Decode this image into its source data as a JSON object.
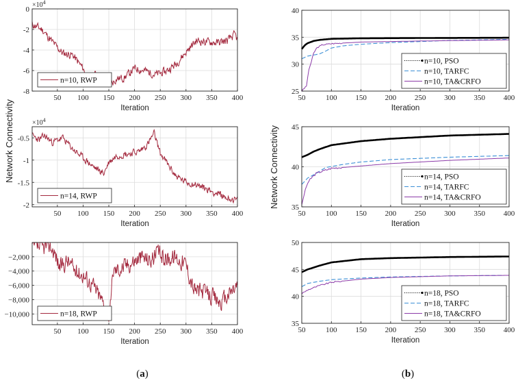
{
  "shared": {
    "ylabel": "Network Connectivity",
    "xlabel": "Iteration",
    "caption_a": {
      "open": "(",
      "letter": "a",
      "close": ")"
    },
    "caption_b": {
      "open": "(",
      "letter": "b",
      "close": ")"
    }
  },
  "colors": {
    "rwp": "#a3283d",
    "pso": "#000000",
    "tarfc": "#3b8fd6",
    "tacrfo": "#8b3aa8",
    "grid": "#dcdcdc"
  },
  "chart_data": [
    {
      "id": "a1",
      "type": "line",
      "column": "a",
      "x": {
        "range": [
          1,
          400
        ],
        "ticks": [
          50,
          100,
          150,
          200,
          250,
          300,
          350,
          400
        ]
      },
      "y": {
        "range": [
          -8,
          0
        ],
        "ticks": [
          0,
          -2,
          -4,
          -6,
          -8
        ],
        "tick_labels": [
          "0",
          "-2",
          "-4",
          "-6",
          "-8"
        ],
        "multiplier": "×10",
        "multiplier_exp": "4"
      },
      "grid": true,
      "legend": "bottom-left",
      "series": [
        {
          "name": "n=10, RWP",
          "color": "#a3283d",
          "style": "solid",
          "noise": 0.35,
          "seed": 11,
          "points": [
            [
              1,
              -1.5
            ],
            [
              20,
              -2.0
            ],
            [
              40,
              -3.2
            ],
            [
              60,
              -4.3
            ],
            [
              80,
              -4.5
            ],
            [
              100,
              -5.8
            ],
            [
              110,
              -6.9
            ],
            [
              125,
              -6.3
            ],
            [
              145,
              -6.8
            ],
            [
              150,
              -7.5
            ],
            [
              165,
              -6.8
            ],
            [
              180,
              -6.7
            ],
            [
              200,
              -5.8
            ],
            [
              220,
              -6.0
            ],
            [
              240,
              -6.4
            ],
            [
              260,
              -6.1
            ],
            [
              280,
              -5.4
            ],
            [
              300,
              -4.2
            ],
            [
              320,
              -3.1
            ],
            [
              340,
              -3.2
            ],
            [
              360,
              -3.3
            ],
            [
              380,
              -3.1
            ],
            [
              395,
              -2.5
            ],
            [
              400,
              -3.0
            ]
          ]
        }
      ]
    },
    {
      "id": "a2",
      "type": "line",
      "column": "a",
      "x": {
        "range": [
          1,
          400
        ],
        "ticks": [
          50,
          100,
          150,
          200,
          250,
          300,
          350,
          400
        ]
      },
      "y": {
        "range": [
          -2.05,
          -0.25
        ],
        "ticks": [
          -0.5,
          -1,
          -1.5,
          -2
        ],
        "tick_labels": [
          "-0.5",
          "-1",
          "-1.5",
          "-2"
        ],
        "multiplier": "×10",
        "multiplier_exp": "4"
      },
      "grid": true,
      "legend": "bottom-left",
      "series": [
        {
          "name": "n=14, RWP",
          "color": "#a3283d",
          "style": "solid",
          "noise": 0.07,
          "seed": 23,
          "points": [
            [
              1,
              -0.45
            ],
            [
              15,
              -0.55
            ],
            [
              25,
              -0.45
            ],
            [
              40,
              -0.6
            ],
            [
              60,
              -0.5
            ],
            [
              80,
              -0.75
            ],
            [
              100,
              -0.95
            ],
            [
              120,
              -1.15
            ],
            [
              140,
              -1.3
            ],
            [
              150,
              -1.05
            ],
            [
              165,
              -0.9
            ],
            [
              190,
              -0.85
            ],
            [
              210,
              -0.8
            ],
            [
              225,
              -0.65
            ],
            [
              238,
              -0.4
            ],
            [
              250,
              -0.85
            ],
            [
              262,
              -1.05
            ],
            [
              280,
              -1.35
            ],
            [
              300,
              -1.5
            ],
            [
              320,
              -1.55
            ],
            [
              340,
              -1.65
            ],
            [
              360,
              -1.75
            ],
            [
              380,
              -1.85
            ],
            [
              400,
              -1.9
            ]
          ]
        }
      ]
    },
    {
      "id": "a3",
      "type": "line",
      "column": "a",
      "x": {
        "range": [
          1,
          400
        ],
        "ticks": [
          50,
          100,
          150,
          200,
          250,
          300,
          350,
          400
        ]
      },
      "y": {
        "range": [
          -11500,
          0
        ],
        "ticks": [
          -2000,
          -4000,
          -6000,
          -8000,
          -10000
        ],
        "tick_labels": [
          "−2,000",
          "−4,000",
          "−6,000",
          "−8,000",
          "−10,000"
        ]
      },
      "grid": true,
      "legend": "bottom-left",
      "series": [
        {
          "name": "n=18, RWP",
          "color": "#a3283d",
          "style": "solid",
          "noise": 1100,
          "seed": 37,
          "points": [
            [
              1,
              -500
            ],
            [
              20,
              -800
            ],
            [
              35,
              -300
            ],
            [
              45,
              -1500
            ],
            [
              55,
              -3500
            ],
            [
              70,
              -2500
            ],
            [
              85,
              -4000
            ],
            [
              100,
              -4500
            ],
            [
              120,
              -6000
            ],
            [
              140,
              -8500
            ],
            [
              152,
              -10500
            ],
            [
              158,
              -4000
            ],
            [
              175,
              -3500
            ],
            [
              200,
              -2500
            ],
            [
              215,
              -2000
            ],
            [
              230,
              -2500
            ],
            [
              245,
              -1500
            ],
            [
              260,
              -2200
            ],
            [
              280,
              -2000
            ],
            [
              300,
              -3000
            ],
            [
              315,
              -6500
            ],
            [
              335,
              -7000
            ],
            [
              350,
              -7500
            ],
            [
              370,
              -8500
            ],
            [
              385,
              -7000
            ],
            [
              400,
              -6000
            ]
          ]
        }
      ]
    },
    {
      "id": "b1",
      "type": "line",
      "column": "b",
      "x": {
        "range": [
          50,
          400
        ],
        "ticks": [
          50,
          100,
          150,
          200,
          250,
          300,
          350,
          400
        ]
      },
      "y": {
        "range": [
          25,
          40
        ],
        "ticks": [
          25,
          30,
          35,
          40
        ],
        "tick_labels": [
          "25",
          "30",
          "35",
          "40"
        ]
      },
      "grid": true,
      "legend": "bottom-right",
      "series": [
        {
          "name": "n=10, PSO",
          "color": "#000000",
          "style": "bold",
          "noise": 0.0,
          "seed": 1,
          "points": [
            [
              50,
              32.8
            ],
            [
              55,
              33.5
            ],
            [
              60,
              33.9
            ],
            [
              70,
              34.3
            ],
            [
              80,
              34.5
            ],
            [
              100,
              34.7
            ],
            [
              150,
              34.8
            ],
            [
              250,
              34.85
            ],
            [
              400,
              34.9
            ]
          ]
        },
        {
          "name": "n=10, TARFC",
          "color": "#3b8fd6",
          "style": "dash",
          "noise": 0.0,
          "seed": 2,
          "points": [
            [
              50,
              31.0
            ],
            [
              60,
              31.5
            ],
            [
              80,
              31.9
            ],
            [
              90,
              32.4
            ],
            [
              100,
              33.0
            ],
            [
              120,
              33.4
            ],
            [
              150,
              33.7
            ],
            [
              200,
              34.0
            ],
            [
              300,
              34.4
            ],
            [
              400,
              34.6
            ]
          ]
        },
        {
          "name": "n=10, TA&CRFO",
          "color": "#8b3aa8",
          "style": "solid",
          "noise": 0.0,
          "seed": 3,
          "points": [
            [
              50,
              25.0
            ],
            [
              55,
              25.6
            ],
            [
              58,
              26.0
            ],
            [
              62,
              29.0
            ],
            [
              66,
              30.4
            ],
            [
              70,
              32.0
            ],
            [
              75,
              33.0
            ],
            [
              85,
              33.6
            ],
            [
              100,
              33.8
            ],
            [
              150,
              34.1
            ],
            [
              250,
              34.3
            ],
            [
              400,
              34.5
            ]
          ]
        }
      ]
    },
    {
      "id": "b2",
      "type": "line",
      "column": "b",
      "x": {
        "range": [
          50,
          400
        ],
        "ticks": [
          50,
          100,
          150,
          200,
          250,
          300,
          350,
          400
        ]
      },
      "y": {
        "range": [
          35,
          45
        ],
        "ticks": [
          35,
          40,
          45
        ],
        "tick_labels": [
          "35",
          "40",
          "45"
        ]
      },
      "grid": true,
      "legend": "bottom-right",
      "series": [
        {
          "name": "n=14, PSO",
          "color": "#000000",
          "style": "bold",
          "noise": 0.0,
          "seed": 4,
          "points": [
            [
              50,
              41.2
            ],
            [
              60,
              41.5
            ],
            [
              70,
              41.9
            ],
            [
              80,
              42.2
            ],
            [
              100,
              42.7
            ],
            [
              150,
              43.2
            ],
            [
              200,
              43.5
            ],
            [
              250,
              43.7
            ],
            [
              300,
              43.9
            ],
            [
              400,
              44.1
            ]
          ]
        },
        {
          "name": "n=14, TARFC",
          "color": "#3b8fd6",
          "style": "dash",
          "noise": 0.0,
          "seed": 5,
          "points": [
            [
              50,
              37.8
            ],
            [
              60,
              38.6
            ],
            [
              75,
              39.2
            ],
            [
              90,
              39.9
            ],
            [
              120,
              40.3
            ],
            [
              150,
              40.6
            ],
            [
              200,
              40.9
            ],
            [
              300,
              41.2
            ],
            [
              400,
              41.4
            ]
          ]
        },
        {
          "name": "n=14, TA&CRFO",
          "color": "#8b3aa8",
          "style": "solid",
          "noise": 0.0,
          "seed": 6,
          "points": [
            [
              50,
              35.2
            ],
            [
              55,
              37.0
            ],
            [
              62,
              38.3
            ],
            [
              75,
              39.2
            ],
            [
              100,
              39.8
            ],
            [
              150,
              40.1
            ],
            [
              200,
              40.4
            ],
            [
              300,
              40.8
            ],
            [
              400,
              41.1
            ]
          ]
        }
      ]
    },
    {
      "id": "b3",
      "type": "line",
      "column": "b",
      "x": {
        "range": [
          50,
          400
        ],
        "ticks": [
          50,
          100,
          150,
          200,
          250,
          300,
          350,
          400
        ]
      },
      "y": {
        "range": [
          35,
          50
        ],
        "ticks": [
          35,
          40,
          45,
          50
        ],
        "tick_labels": [
          "35",
          "40",
          "45",
          "50"
        ]
      },
      "grid": true,
      "legend": "bottom-right",
      "series": [
        {
          "name": "n=18, PSO",
          "color": "#000000",
          "style": "bold",
          "noise": 0.0,
          "seed": 7,
          "points": [
            [
              50,
              44.5
            ],
            [
              60,
              45.0
            ],
            [
              80,
              45.7
            ],
            [
              100,
              46.3
            ],
            [
              150,
              46.9
            ],
            [
              200,
              47.1
            ],
            [
              300,
              47.3
            ],
            [
              400,
              47.4
            ]
          ]
        },
        {
          "name": "n=18, TARFC",
          "color": "#3b8fd6",
          "style": "dash",
          "noise": 0.0,
          "seed": 8,
          "points": [
            [
              50,
              41.8
            ],
            [
              60,
              42.4
            ],
            [
              80,
              42.8
            ],
            [
              100,
              43.1
            ],
            [
              150,
              43.4
            ],
            [
              200,
              43.6
            ],
            [
              300,
              43.8
            ],
            [
              400,
              43.9
            ]
          ]
        },
        {
          "name": "n=18, TA&CRFO",
          "color": "#8b3aa8",
          "style": "solid",
          "noise": 0.0,
          "seed": 9,
          "points": [
            [
              50,
              40.5
            ],
            [
              60,
              41.2
            ],
            [
              80,
              42.0
            ],
            [
              100,
              42.6
            ],
            [
              150,
              43.2
            ],
            [
              200,
              43.5
            ],
            [
              300,
              43.8
            ],
            [
              400,
              43.9
            ]
          ]
        }
      ]
    }
  ]
}
